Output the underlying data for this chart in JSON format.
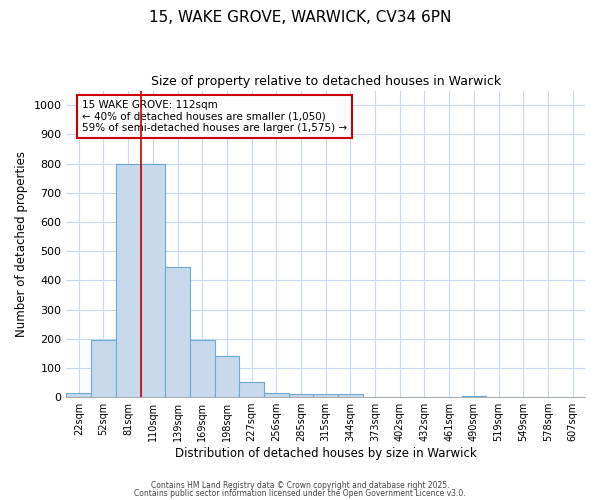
{
  "title1": "15, WAKE GROVE, WARWICK, CV34 6PN",
  "title2": "Size of property relative to detached houses in Warwick",
  "xlabel": "Distribution of detached houses by size in Warwick",
  "ylabel": "Number of detached properties",
  "bin_labels": [
    "22sqm",
    "52sqm",
    "81sqm",
    "110sqm",
    "139sqm",
    "169sqm",
    "198sqm",
    "227sqm",
    "256sqm",
    "285sqm",
    "315sqm",
    "344sqm",
    "373sqm",
    "402sqm",
    "432sqm",
    "461sqm",
    "490sqm",
    "519sqm",
    "549sqm",
    "578sqm",
    "607sqm"
  ],
  "bar_heights": [
    15,
    195,
    800,
    800,
    445,
    197,
    140,
    50,
    13,
    10,
    10,
    10,
    0,
    0,
    0,
    0,
    5,
    0,
    0,
    0,
    0
  ],
  "bar_color": "#c8d9ee",
  "bar_edge_color": "#6aaad4",
  "grid_color": "#c8d8f0",
  "red_line_x": 2.5,
  "annotation_text": "15 WAKE GROVE: 112sqm\n← 40% of detached houses are smaller (1,050)\n59% of semi-detached houses are larger (1,575) →",
  "annotation_box_color": "#ffffff",
  "annotation_box_edge": "#cc0000",
  "ylim": [
    0,
    1050
  ],
  "yticks": [
    0,
    100,
    200,
    300,
    400,
    500,
    600,
    700,
    800,
    900,
    1000
  ],
  "footer1": "Contains HM Land Registry data © Crown copyright and database right 2025.",
  "footer2": "Contains public sector information licensed under the Open Government Licence v3.0.",
  "bg_color": "#ffffff"
}
